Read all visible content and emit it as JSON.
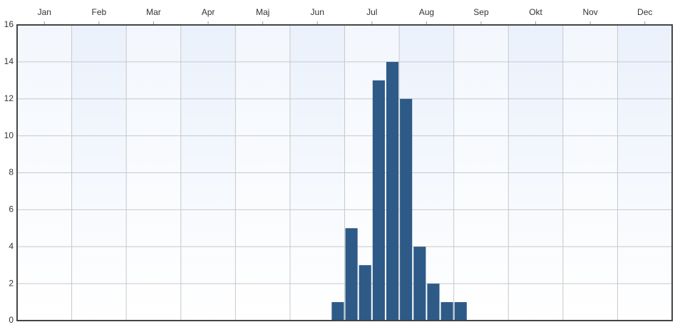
{
  "chart_data": {
    "type": "histogram",
    "bins": [
      5.75,
      6.0,
      6.25,
      6.5,
      6.75,
      7.0,
      7.25,
      7.5,
      7.75,
      8.0,
      8.25
    ],
    "values": [
      1,
      5,
      3,
      13,
      14,
      12,
      4,
      2,
      1,
      1
    ],
    "color": "#2e5a88",
    "xlim": [
      0,
      12
    ],
    "xticks": [
      {
        "value": 0.5,
        "label": "Jan"
      },
      {
        "value": 1.5,
        "label": "Feb"
      },
      {
        "value": 2.5,
        "label": "Mar"
      },
      {
        "value": 3.5,
        "label": "Apr"
      },
      {
        "value": 4.5,
        "label": "Maj"
      },
      {
        "value": 5.5,
        "label": "Jun"
      },
      {
        "value": 6.5,
        "label": "Jul"
      },
      {
        "value": 7.5,
        "label": "Aug"
      },
      {
        "value": 8.5,
        "label": "Sep"
      },
      {
        "value": 9.5,
        "label": "Okt"
      },
      {
        "value": 10.5,
        "label": "Nov"
      },
      {
        "value": 11.5,
        "label": "Dec"
      }
    ],
    "ylim": [
      0,
      16
    ],
    "yticks": [
      0,
      2,
      4,
      6,
      8,
      10,
      12,
      14,
      16
    ],
    "grid": true
  }
}
